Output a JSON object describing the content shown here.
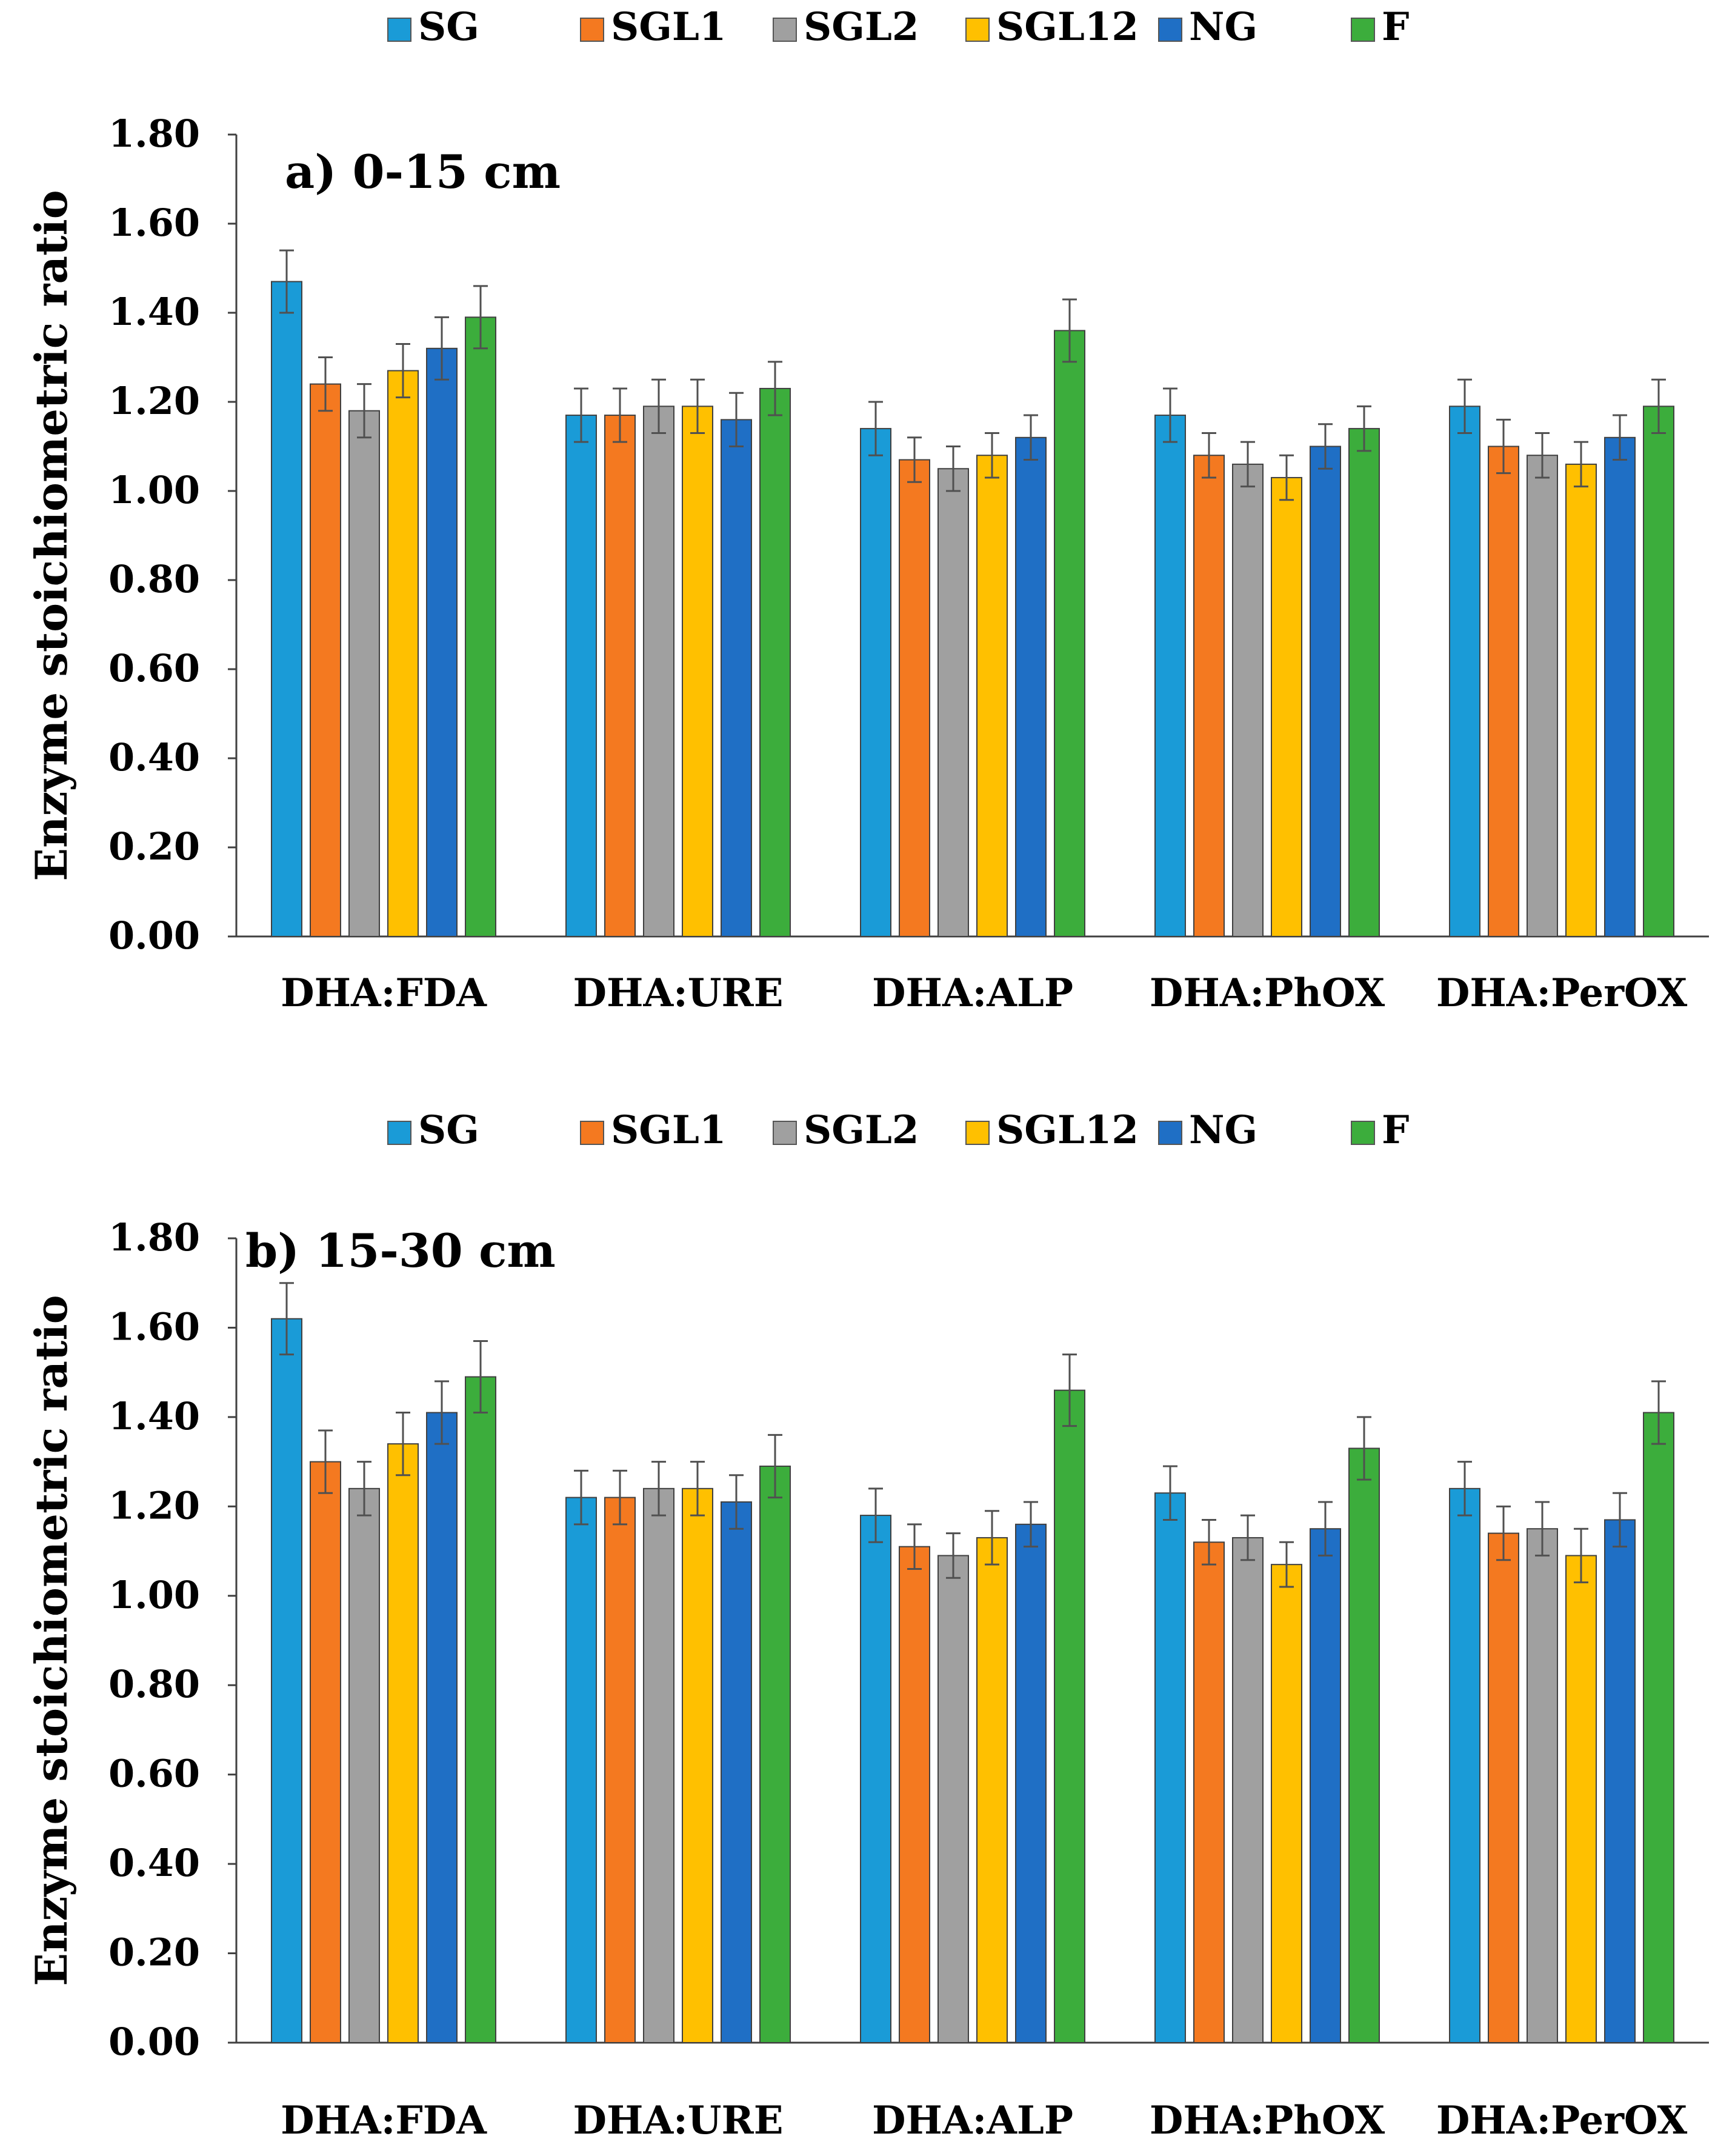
{
  "chart_data": [
    {
      "type": "bar",
      "title": "a) 0-15 cm",
      "ylabel": "Enzyme stoichiometric ratio",
      "xlabel": "",
      "ylim": [
        0,
        1.8
      ],
      "yticks": [
        "0.00",
        "0.20",
        "0.40",
        "0.60",
        "0.80",
        "1.00",
        "1.20",
        "1.40",
        "1.60",
        "1.80"
      ],
      "categories": [
        "DHA:FDA",
        "DHA:URE",
        "DHA:ALP",
        "DHA:PhOX",
        "DHA:PerOX"
      ],
      "legend_position": "top",
      "series": [
        {
          "name": "SG",
          "color": "#1a9bd7",
          "values": [
            1.47,
            1.17,
            1.14,
            1.17,
            1.19
          ],
          "errors": [
            0.07,
            0.06,
            0.06,
            0.06,
            0.06
          ]
        },
        {
          "name": "SGL1",
          "color": "#f47920",
          "values": [
            1.24,
            1.17,
            1.07,
            1.08,
            1.1
          ],
          "errors": [
            0.06,
            0.06,
            0.05,
            0.05,
            0.06
          ]
        },
        {
          "name": "SGL2",
          "color": "#a0a0a0",
          "values": [
            1.18,
            1.19,
            1.05,
            1.06,
            1.08
          ],
          "errors": [
            0.06,
            0.06,
            0.05,
            0.05,
            0.05
          ]
        },
        {
          "name": "SGL12",
          "color": "#ffc000",
          "values": [
            1.27,
            1.19,
            1.08,
            1.03,
            1.06
          ],
          "errors": [
            0.06,
            0.06,
            0.05,
            0.05,
            0.05
          ]
        },
        {
          "name": "NG",
          "color": "#1f6fc5",
          "values": [
            1.32,
            1.16,
            1.12,
            1.1,
            1.12
          ],
          "errors": [
            0.07,
            0.06,
            0.05,
            0.05,
            0.05
          ]
        },
        {
          "name": "F",
          "color": "#3cad3c",
          "values": [
            1.39,
            1.23,
            1.36,
            1.14,
            1.19
          ],
          "errors": [
            0.07,
            0.06,
            0.07,
            0.05,
            0.06
          ]
        }
      ]
    },
    {
      "type": "bar",
      "title": "b) 15-30 cm",
      "ylabel": "Enzyme stoichiometric ratio",
      "xlabel": "",
      "ylim": [
        0,
        1.8
      ],
      "yticks": [
        "0.00",
        "0.20",
        "0.40",
        "0.60",
        "0.80",
        "1.00",
        "1.20",
        "1.40",
        "1.60",
        "1.80"
      ],
      "categories": [
        "DHA:FDA",
        "DHA:URE",
        "DHA:ALP",
        "DHA:PhOX",
        "DHA:PerOX"
      ],
      "legend_position": "top",
      "series": [
        {
          "name": "SG",
          "color": "#1a9bd7",
          "values": [
            1.62,
            1.22,
            1.18,
            1.23,
            1.24
          ],
          "errors": [
            0.08,
            0.06,
            0.06,
            0.06,
            0.06
          ]
        },
        {
          "name": "SGL1",
          "color": "#f47920",
          "values": [
            1.3,
            1.22,
            1.11,
            1.12,
            1.14
          ],
          "errors": [
            0.07,
            0.06,
            0.05,
            0.05,
            0.06
          ]
        },
        {
          "name": "SGL2",
          "color": "#a0a0a0",
          "values": [
            1.24,
            1.24,
            1.09,
            1.13,
            1.15
          ],
          "errors": [
            0.06,
            0.06,
            0.05,
            0.05,
            0.06
          ]
        },
        {
          "name": "SGL12",
          "color": "#ffc000",
          "values": [
            1.34,
            1.24,
            1.13,
            1.07,
            1.09
          ],
          "errors": [
            0.07,
            0.06,
            0.06,
            0.05,
            0.06
          ]
        },
        {
          "name": "NG",
          "color": "#1f6fc5",
          "values": [
            1.41,
            1.21,
            1.16,
            1.15,
            1.17
          ],
          "errors": [
            0.07,
            0.06,
            0.05,
            0.06,
            0.06
          ]
        },
        {
          "name": "F",
          "color": "#3cad3c",
          "values": [
            1.49,
            1.29,
            1.46,
            1.33,
            1.41
          ],
          "errors": [
            0.08,
            0.07,
            0.08,
            0.07,
            0.07
          ]
        }
      ]
    }
  ]
}
